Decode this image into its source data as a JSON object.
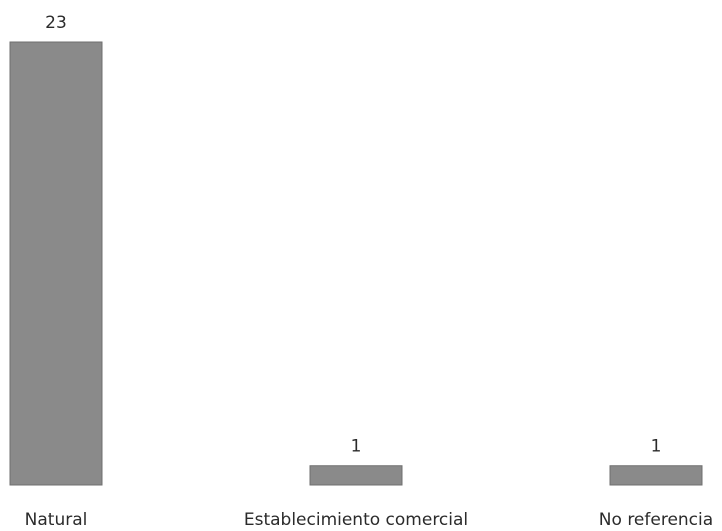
{
  "chart_data": {
    "type": "bar",
    "title": "",
    "xlabel": "",
    "ylabel": "",
    "categories": [
      "Natural",
      "Establecimiento comercial",
      "No referencia"
    ],
    "values": [
      23,
      1,
      1
    ],
    "data_labels": [
      "23",
      "1",
      "1"
    ],
    "ylim": [
      0,
      23
    ],
    "grid": false,
    "legend": "none",
    "bar_color": "#8a8a8a"
  }
}
